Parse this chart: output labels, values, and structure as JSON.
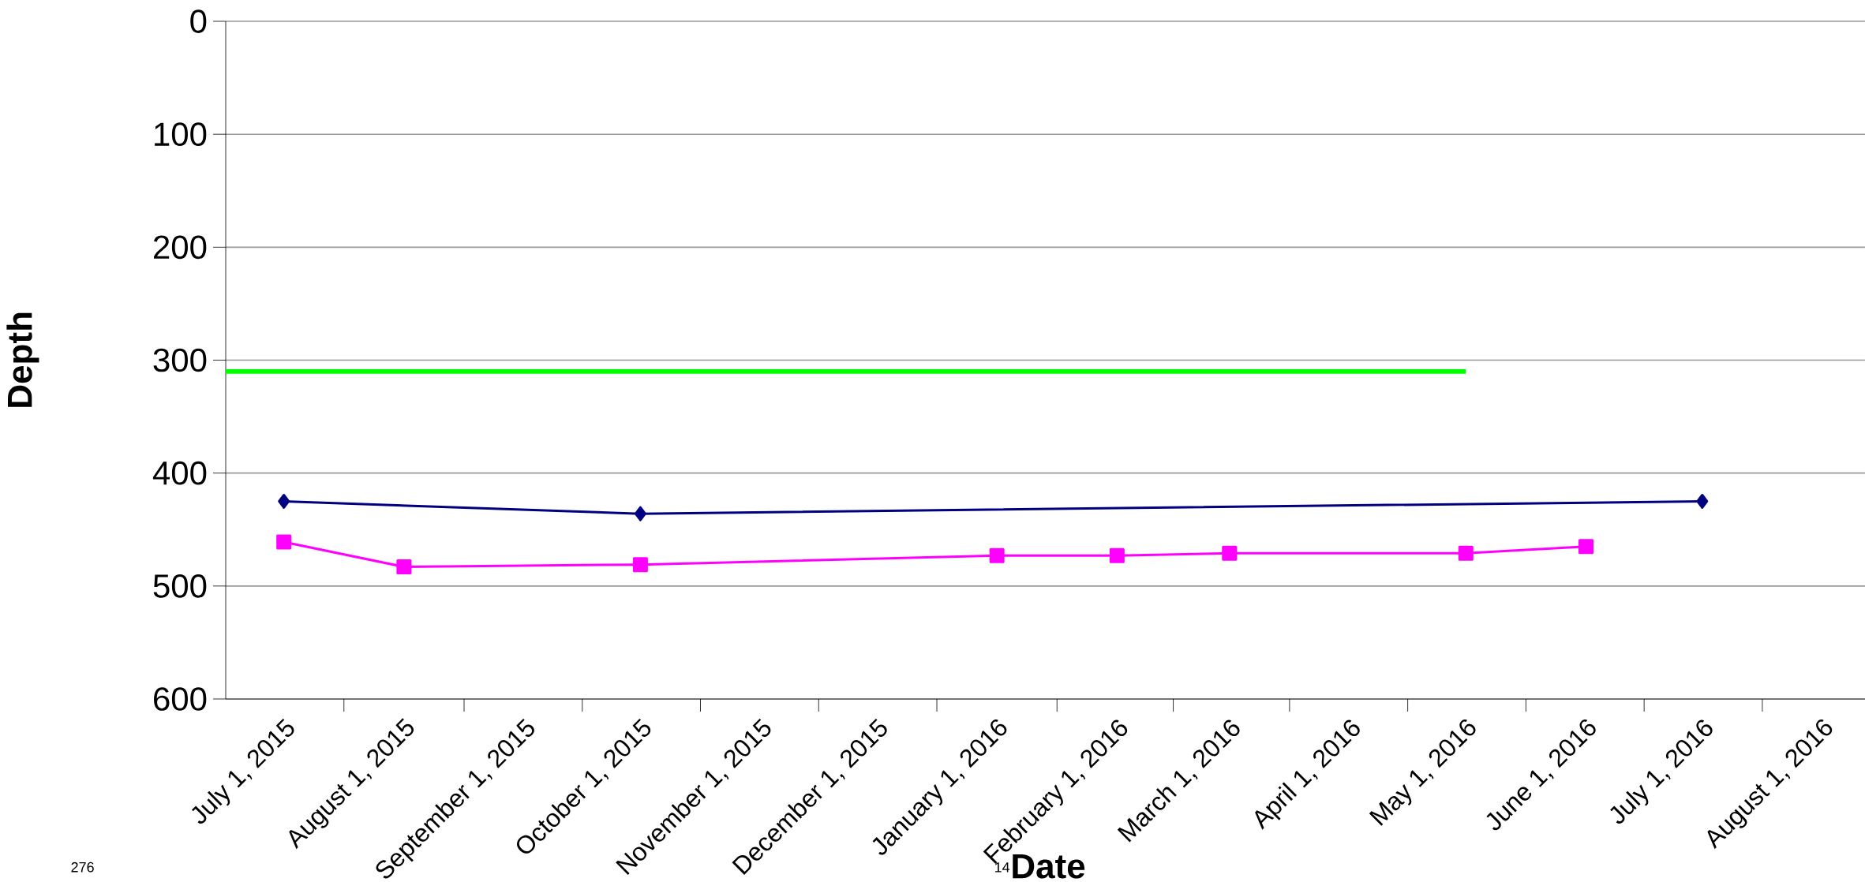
{
  "chart_data": {
    "type": "line",
    "xlabel": "Date",
    "ylabel": "Depth",
    "xlim": [
      "2015-06-16",
      "2016-08-12"
    ],
    "ylim": [
      600,
      0
    ],
    "yticks": [
      0,
      100,
      200,
      300,
      400,
      500,
      600
    ],
    "xticks": [
      {
        "value": "2015-07-01",
        "label": "July 1, 2015"
      },
      {
        "value": "2015-08-01",
        "label": "August 1, 2015"
      },
      {
        "value": "2015-09-01",
        "label": "September 1, 2015"
      },
      {
        "value": "2015-10-01",
        "label": "October 1, 2015"
      },
      {
        "value": "2015-11-01",
        "label": "November 1, 2015"
      },
      {
        "value": "2015-12-01",
        "label": "December 1, 2015"
      },
      {
        "value": "2016-01-01",
        "label": "January 1, 2016"
      },
      {
        "value": "2016-02-01",
        "label": "February 1, 2016"
      },
      {
        "value": "2016-03-01",
        "label": "March 1, 2016"
      },
      {
        "value": "2016-04-01",
        "label": "April 1, 2016"
      },
      {
        "value": "2016-05-01",
        "label": "May 1, 2016"
      },
      {
        "value": "2016-06-01",
        "label": "June 1, 2016"
      },
      {
        "value": "2016-07-01",
        "label": "July 1, 2016"
      },
      {
        "value": "2016-08-01",
        "label": "August 1, 2016"
      }
    ],
    "grid": "y",
    "series": [
      {
        "color": "#000080",
        "marker": "diamond",
        "x": [
          "2015-07-01",
          "2015-10-01",
          "2016-07-01"
        ],
        "values": [
          425,
          436,
          425
        ]
      },
      {
        "color": "#ff00ff",
        "marker": "square",
        "x": [
          "2015-07-01",
          "2015-08-01",
          "2015-10-01",
          "2016-01-01",
          "2016-02-01",
          "2016-03-01",
          "2016-05-01",
          "2016-06-01"
        ],
        "values": [
          461,
          483,
          481,
          473,
          473,
          471,
          471,
          465
        ]
      },
      {
        "color": "#00ff00",
        "marker": "none",
        "x": [
          "2015-06-16",
          "2016-05-01"
        ],
        "values": [
          310,
          310
        ]
      }
    ],
    "annotations": [
      "276",
      "14"
    ]
  }
}
